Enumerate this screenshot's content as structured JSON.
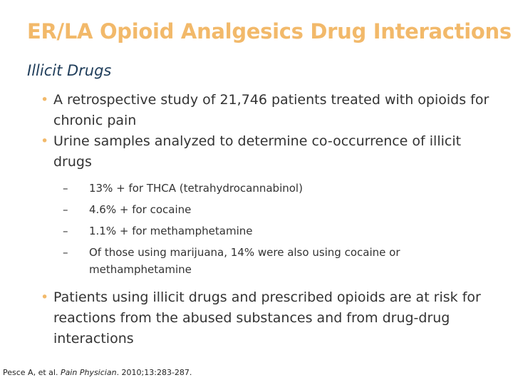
{
  "slide": {
    "title": "ER/LA Opioid Analgesics Drug Interactions",
    "subtitle": "Illicit Drugs",
    "bullet_marker": "•",
    "dash_marker": "–",
    "bullets": [
      {
        "text": "A retrospective study of 21,746 patients treated with opioids for chronic pain"
      },
      {
        "text": "Urine samples analyzed to determine co-occurrence of illicit drugs"
      },
      {
        "text": "Patients using illicit drugs and prescribed opioids are at risk for reactions from the abused substances and from drug-drug interactions"
      }
    ],
    "sub_bullets": [
      {
        "text": "13% + for THCA (tetrahydrocannabinol)"
      },
      {
        "text": "4.6% + for cocaine"
      },
      {
        "text": "1.1% + for methamphetamine"
      },
      {
        "text": "Of those using marijuana, 14% were also using cocaine or methamphetamine"
      }
    ],
    "citation": {
      "authors": "Pesce A, et al. ",
      "journal": "Pain Physician",
      "details": ". 2010;13:283-287."
    },
    "colors": {
      "title": "#F2B96A",
      "subtitle": "#1F3D5A",
      "bullet": "#F2B96A",
      "text": "#333333"
    }
  }
}
